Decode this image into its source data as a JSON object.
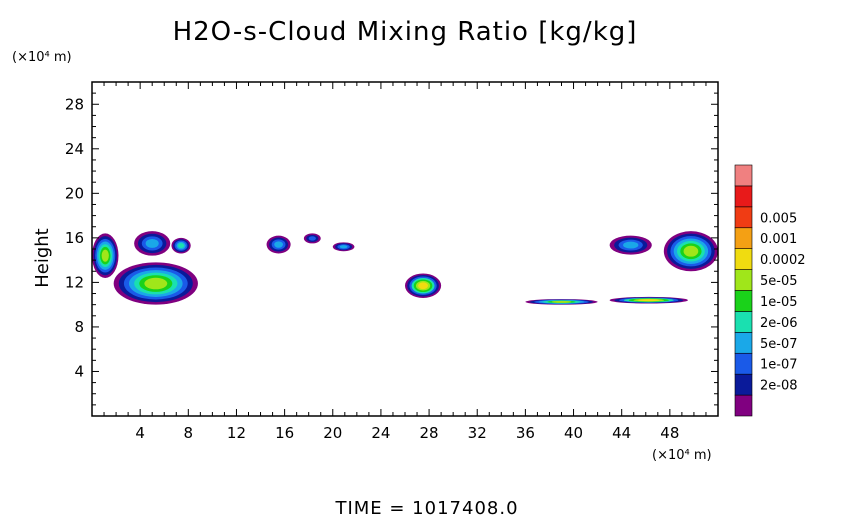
{
  "chart_data": {
    "type": "heatmap",
    "title": "H2O-s-Cloud Mixing Ratio [kg/kg]",
    "ylabel": "Height",
    "xunit": "(×10⁴ m)",
    "yunit": "(×10⁴ m)",
    "xlim": [
      0,
      52
    ],
    "ylim": [
      0,
      30
    ],
    "xticks": [
      4,
      8,
      12,
      16,
      20,
      24,
      28,
      32,
      36,
      40,
      44,
      48
    ],
    "yticks": [
      4,
      8,
      12,
      16,
      20,
      24,
      28
    ],
    "footer": "TIME = 1017408.0",
    "legend": {
      "placement": "right",
      "levels": [
        "2e-08",
        "1e-07",
        "5e-07",
        "2e-06",
        "1e-05",
        "5e-05",
        "0.0002",
        "0.001",
        "0.005"
      ],
      "colors": [
        "#800080",
        "#0a1a9a",
        "#1a5ae8",
        "#1aa8e8",
        "#1ae0b0",
        "#1ad21a",
        "#a0e61a",
        "#f0dc10",
        "#f4a014",
        "#f03c14",
        "#e81a1a",
        "#f08080"
      ]
    },
    "cloud_features": [
      {
        "x": [
          0,
          2.2
        ],
        "y": [
          12.4,
          16.4
        ],
        "peak": "5e-05"
      },
      {
        "x": [
          3.5,
          6.5
        ],
        "y": [
          14.4,
          16.6
        ],
        "peak": "5e-07"
      },
      {
        "x": [
          6.6,
          8.2
        ],
        "y": [
          14.6,
          16.0
        ],
        "peak": "2e-06"
      },
      {
        "x": [
          14.5,
          16.5
        ],
        "y": [
          14.6,
          16.2
        ],
        "peak": "5e-07"
      },
      {
        "x": [
          17.6,
          19.0
        ],
        "y": [
          15.5,
          16.4
        ],
        "peak": "1e-07"
      },
      {
        "x": [
          20.0,
          21.8
        ],
        "y": [
          14.8,
          15.6
        ],
        "peak": "5e-07"
      },
      {
        "x": [
          26.0,
          29.0
        ],
        "y": [
          10.6,
          12.8
        ],
        "peak": "0.0002"
      },
      {
        "x": [
          36.0,
          42.0
        ],
        "y": [
          10.0,
          10.5
        ],
        "peak": "5e-05"
      },
      {
        "x": [
          43.0,
          49.5
        ],
        "y": [
          10.1,
          10.7
        ],
        "peak": "0.0002"
      },
      {
        "x": [
          43.0,
          46.5
        ],
        "y": [
          14.5,
          16.2
        ],
        "peak": "5e-07"
      },
      {
        "x": [
          47.5,
          52.0
        ],
        "y": [
          13.0,
          16.6
        ],
        "peak": "5e-05"
      },
      {
        "x": [
          1.8,
          8.8
        ],
        "y": [
          10.0,
          13.8
        ],
        "peak": "5e-05"
      }
    ]
  }
}
